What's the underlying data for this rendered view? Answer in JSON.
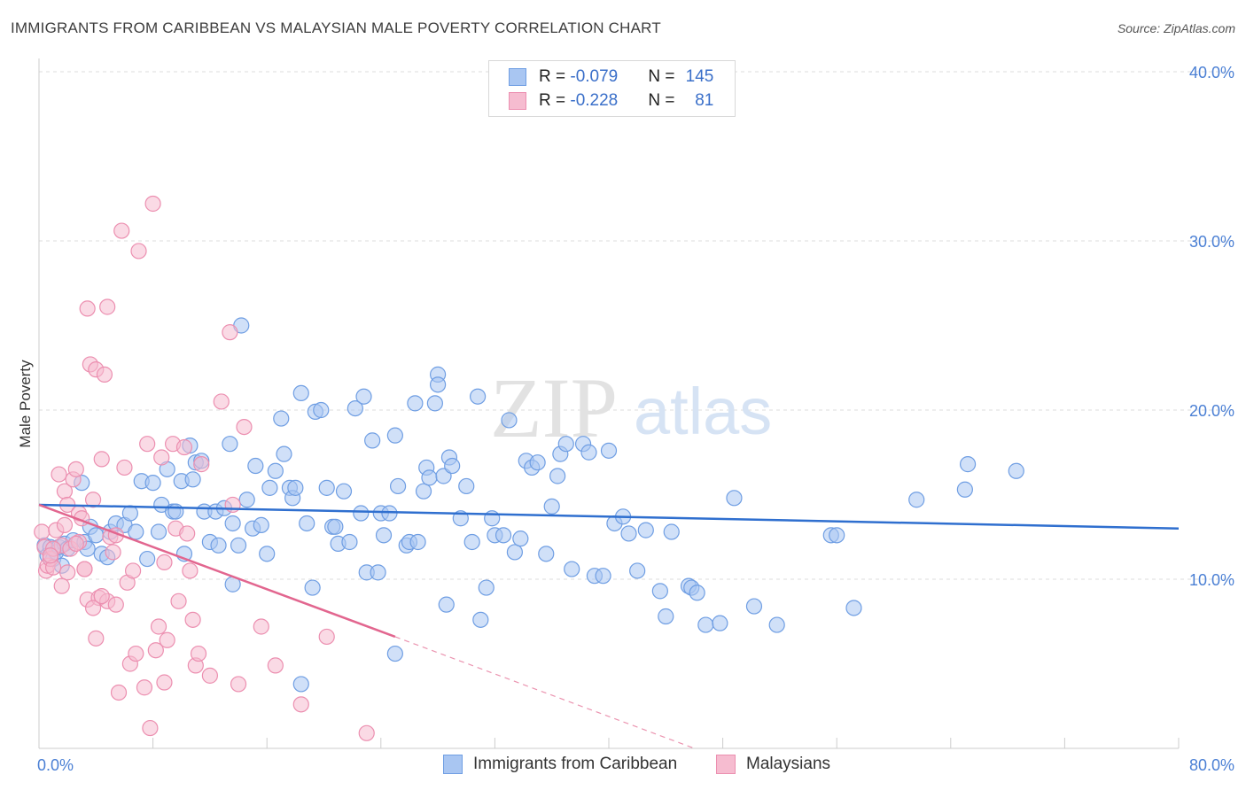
{
  "title": "IMMIGRANTS FROM CARIBBEAN VS MALAYSIAN MALE POVERTY CORRELATION CHART",
  "source": "Source: ZipAtlas.com",
  "watermark": {
    "zip": "ZIP",
    "atlas": "atlas"
  },
  "legend": {
    "rows": [
      {
        "r_label": "R = ",
        "r_value": "-0.079",
        "n_label": "N = ",
        "n_value": "145"
      },
      {
        "r_label": "R = ",
        "r_value": "-0.228",
        "n_label": "N = ",
        "n_value": "81"
      }
    ]
  },
  "colors": {
    "blue_fill": "#a9c6f2",
    "blue_stroke": "#6f9ee3",
    "blue_line": "#2f6fcf",
    "pink_fill": "#f6bcd0",
    "pink_stroke": "#ec8fb0",
    "pink_line": "#e2668f",
    "grid": "#dddddd",
    "tick_text": "#4a7fd4"
  },
  "chart_data": {
    "type": "scatter",
    "title": "IMMIGRANTS FROM CARIBBEAN VS MALAYSIAN MALE POVERTY CORRELATION CHART",
    "xlabel": "",
    "ylabel": "Male Poverty",
    "xlim": [
      0,
      80
    ],
    "ylim": [
      0,
      40
    ],
    "x_tick_labels": [
      "0.0%",
      "80.0%"
    ],
    "y_ticks": [
      10,
      20,
      30,
      40
    ],
    "y_tick_labels": [
      "10.0%",
      "20.0%",
      "30.0%",
      "40.0%"
    ],
    "grid": true,
    "legend_position": "bottom",
    "series": [
      {
        "name": "Immigrants from Caribbean",
        "trend": {
          "x": [
            0,
            80
          ],
          "y": [
            14.4,
            13.0
          ]
        },
        "points": [
          [
            0.4,
            12.0
          ],
          [
            0.6,
            11.4
          ],
          [
            0.8,
            11.9
          ],
          [
            1.0,
            11.2
          ],
          [
            1.2,
            11.6
          ],
          [
            1.4,
            11.9
          ],
          [
            1.6,
            10.8
          ],
          [
            1.8,
            12.1
          ],
          [
            2.0,
            11.8
          ],
          [
            2.4,
            12.3
          ],
          [
            3.0,
            15.7
          ],
          [
            3.2,
            12.2
          ],
          [
            3.4,
            11.8
          ],
          [
            3.6,
            13.1
          ],
          [
            4.0,
            12.6
          ],
          [
            4.4,
            11.5
          ],
          [
            4.8,
            11.3
          ],
          [
            5.0,
            12.8
          ],
          [
            5.4,
            13.3
          ],
          [
            6.0,
            13.2
          ],
          [
            6.4,
            13.9
          ],
          [
            6.8,
            12.8
          ],
          [
            7.2,
            15.8
          ],
          [
            7.6,
            11.2
          ],
          [
            8.0,
            15.7
          ],
          [
            8.4,
            12.8
          ],
          [
            8.6,
            14.4
          ],
          [
            9.0,
            16.5
          ],
          [
            9.4,
            14.0
          ],
          [
            9.6,
            14.0
          ],
          [
            10.0,
            15.8
          ],
          [
            10.2,
            11.5
          ],
          [
            10.6,
            17.9
          ],
          [
            10.8,
            15.9
          ],
          [
            11.0,
            16.9
          ],
          [
            11.4,
            17.0
          ],
          [
            11.6,
            14.0
          ],
          [
            12.0,
            12.2
          ],
          [
            12.4,
            14.0
          ],
          [
            12.6,
            12.0
          ],
          [
            13.0,
            14.2
          ],
          [
            13.4,
            18.0
          ],
          [
            13.6,
            13.3
          ],
          [
            14.0,
            12.0
          ],
          [
            14.2,
            25.0
          ],
          [
            14.6,
            14.7
          ],
          [
            15.0,
            13.0
          ],
          [
            15.2,
            16.7
          ],
          [
            15.6,
            13.2
          ],
          [
            16.0,
            11.5
          ],
          [
            16.2,
            15.4
          ],
          [
            16.6,
            16.4
          ],
          [
            17.0,
            19.5
          ],
          [
            17.2,
            17.4
          ],
          [
            17.6,
            15.4
          ],
          [
            17.8,
            14.8
          ],
          [
            18.0,
            15.4
          ],
          [
            18.4,
            21.0
          ],
          [
            18.8,
            13.3
          ],
          [
            19.2,
            9.5
          ],
          [
            19.4,
            19.9
          ],
          [
            19.8,
            20.0
          ],
          [
            20.2,
            15.4
          ],
          [
            20.6,
            13.1
          ],
          [
            20.8,
            13.1
          ],
          [
            21.0,
            12.1
          ],
          [
            21.4,
            15.2
          ],
          [
            21.8,
            12.2
          ],
          [
            22.2,
            20.1
          ],
          [
            22.6,
            13.9
          ],
          [
            22.8,
            20.8
          ],
          [
            23.0,
            10.4
          ],
          [
            23.4,
            18.2
          ],
          [
            23.8,
            10.4
          ],
          [
            24.0,
            13.9
          ],
          [
            24.2,
            12.6
          ],
          [
            24.6,
            13.9
          ],
          [
            25.0,
            18.5
          ],
          [
            25.2,
            15.5
          ],
          [
            25.8,
            12.0
          ],
          [
            26.0,
            12.2
          ],
          [
            26.4,
            20.4
          ],
          [
            26.6,
            12.2
          ],
          [
            27.0,
            15.2
          ],
          [
            27.2,
            16.6
          ],
          [
            27.4,
            16.0
          ],
          [
            27.8,
            20.4
          ],
          [
            28.0,
            22.1
          ],
          [
            28.4,
            16.1
          ],
          [
            28.6,
            8.5
          ],
          [
            28.8,
            17.2
          ],
          [
            29.0,
            16.7
          ],
          [
            29.6,
            13.6
          ],
          [
            30.0,
            15.5
          ],
          [
            30.4,
            12.2
          ],
          [
            30.8,
            20.8
          ],
          [
            31.4,
            9.5
          ],
          [
            31.8,
            13.6
          ],
          [
            32.0,
            12.6
          ],
          [
            32.6,
            12.6
          ],
          [
            33.0,
            19.4
          ],
          [
            33.4,
            11.6
          ],
          [
            33.8,
            12.4
          ],
          [
            34.2,
            17.0
          ],
          [
            34.6,
            16.6
          ],
          [
            35.0,
            16.9
          ],
          [
            35.6,
            11.5
          ],
          [
            36.0,
            14.3
          ],
          [
            36.4,
            16.1
          ],
          [
            36.6,
            17.4
          ],
          [
            37.0,
            18.0
          ],
          [
            37.4,
            10.6
          ],
          [
            38.2,
            18.0
          ],
          [
            38.6,
            17.5
          ],
          [
            39.0,
            10.2
          ],
          [
            39.6,
            10.2
          ],
          [
            40.0,
            17.6
          ],
          [
            40.4,
            13.3
          ],
          [
            41.0,
            13.7
          ],
          [
            41.4,
            12.7
          ],
          [
            42.0,
            10.5
          ],
          [
            42.6,
            12.9
          ],
          [
            43.6,
            9.3
          ],
          [
            44.0,
            7.8
          ],
          [
            44.4,
            12.8
          ],
          [
            45.6,
            9.6
          ],
          [
            45.8,
            9.5
          ],
          [
            46.2,
            9.2
          ],
          [
            46.8,
            7.3
          ],
          [
            47.8,
            7.4
          ],
          [
            48.8,
            14.8
          ],
          [
            50.2,
            8.4
          ],
          [
            51.8,
            7.3
          ],
          [
            55.6,
            12.6
          ],
          [
            56.0,
            12.6
          ],
          [
            57.2,
            8.3
          ],
          [
            61.6,
            14.7
          ],
          [
            65.2,
            16.8
          ],
          [
            65.0,
            15.3
          ],
          [
            68.6,
            16.4
          ],
          [
            25.0,
            5.6
          ],
          [
            18.4,
            3.8
          ],
          [
            28.0,
            21.5
          ],
          [
            31.0,
            7.6
          ],
          [
            13.6,
            9.7
          ]
        ]
      },
      {
        "name": "Malaysians",
        "trend": {
          "x": [
            0,
            25
          ],
          "y": [
            14.4,
            6.6
          ]
        },
        "trend_dashed": {
          "x": [
            25,
            46
          ],
          "y": [
            6.6,
            0.0
          ]
        },
        "points": [
          [
            0.2,
            12.8
          ],
          [
            0.4,
            11.9
          ],
          [
            0.5,
            10.5
          ],
          [
            0.6,
            10.8
          ],
          [
            0.8,
            11.2
          ],
          [
            1.0,
            10.7
          ],
          [
            1.2,
            12.9
          ],
          [
            1.4,
            16.2
          ],
          [
            1.6,
            12.0
          ],
          [
            1.8,
            15.2
          ],
          [
            2.0,
            14.4
          ],
          [
            2.2,
            11.8
          ],
          [
            2.4,
            15.9
          ],
          [
            2.6,
            16.5
          ],
          [
            2.8,
            13.9
          ],
          [
            3.0,
            13.6
          ],
          [
            3.2,
            10.6
          ],
          [
            3.4,
            8.8
          ],
          [
            3.6,
            22.7
          ],
          [
            3.8,
            14.7
          ],
          [
            4.0,
            22.4
          ],
          [
            4.2,
            8.9
          ],
          [
            4.4,
            17.1
          ],
          [
            4.6,
            22.1
          ],
          [
            4.8,
            26.1
          ],
          [
            5.0,
            12.5
          ],
          [
            5.2,
            11.6
          ],
          [
            5.4,
            12.6
          ],
          [
            5.8,
            30.6
          ],
          [
            6.0,
            16.6
          ],
          [
            6.2,
            9.8
          ],
          [
            6.4,
            5.0
          ],
          [
            6.8,
            5.6
          ],
          [
            7.0,
            29.4
          ],
          [
            7.4,
            3.6
          ],
          [
            7.8,
            1.2
          ],
          [
            8.0,
            32.2
          ],
          [
            8.2,
            5.8
          ],
          [
            8.4,
            7.2
          ],
          [
            8.6,
            17.2
          ],
          [
            8.8,
            11.0
          ],
          [
            9.0,
            6.4
          ],
          [
            9.4,
            18.0
          ],
          [
            9.6,
            13.0
          ],
          [
            9.8,
            8.7
          ],
          [
            10.2,
            17.8
          ],
          [
            10.4,
            12.7
          ],
          [
            10.6,
            10.5
          ],
          [
            10.8,
            7.6
          ],
          [
            11.0,
            4.9
          ],
          [
            11.2,
            5.6
          ],
          [
            11.4,
            16.8
          ],
          [
            12.0,
            4.3
          ],
          [
            12.8,
            20.5
          ],
          [
            13.4,
            24.6
          ],
          [
            13.6,
            14.4
          ],
          [
            14.0,
            3.8
          ],
          [
            14.4,
            19.0
          ],
          [
            15.6,
            7.2
          ],
          [
            16.6,
            4.9
          ],
          [
            18.4,
            2.6
          ],
          [
            20.2,
            6.6
          ],
          [
            23.0,
            0.9
          ],
          [
            2.0,
            10.4
          ],
          [
            1.6,
            9.6
          ],
          [
            3.2,
            10.6
          ],
          [
            3.8,
            8.3
          ],
          [
            4.8,
            8.7
          ],
          [
            5.4,
            8.5
          ],
          [
            2.8,
            12.2
          ],
          [
            3.4,
            26.0
          ],
          [
            4.0,
            6.5
          ],
          [
            5.6,
            3.3
          ],
          [
            6.6,
            10.5
          ],
          [
            7.6,
            18.0
          ],
          [
            1.0,
            11.8
          ],
          [
            1.8,
            13.2
          ],
          [
            2.6,
            12.1
          ],
          [
            0.8,
            11.4
          ],
          [
            4.4,
            9.0
          ],
          [
            8.8,
            3.9
          ]
        ]
      }
    ]
  },
  "bottom_legend": {
    "items": [
      {
        "label": "Immigrants from Caribbean"
      },
      {
        "label": "Malaysians"
      }
    ]
  }
}
